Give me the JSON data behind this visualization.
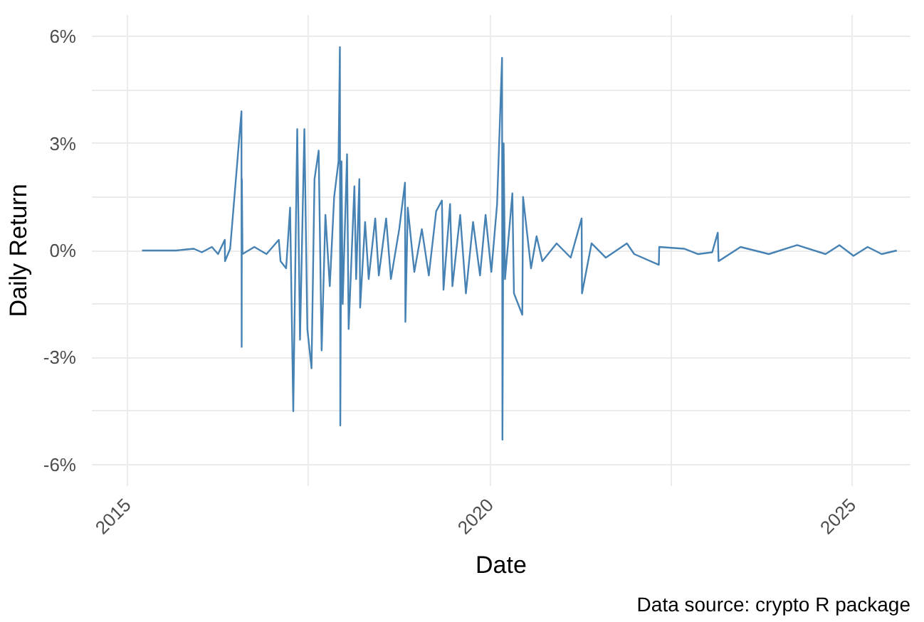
{
  "chart_data": {
    "type": "line",
    "xlabel": "Date",
    "ylabel": "Daily Return",
    "annotations": [
      "Data source: crypto R package"
    ],
    "xlim": [
      "2014-07-05",
      "2025-10-20"
    ],
    "ylim": [
      -6.6,
      6.6
    ],
    "xticks": [
      {
        "value": "2015-01-01",
        "label": "2015"
      },
      {
        "value": "2017-07-02",
        "label": null
      },
      {
        "value": "2020-01-01",
        "label": "2020"
      },
      {
        "value": "2022-07-02",
        "label": null
      },
      {
        "value": "2025-01-01",
        "label": "2025"
      }
    ],
    "yticks": [
      {
        "value": -6,
        "label": "-6%"
      },
      {
        "value": -4.5,
        "label": null
      },
      {
        "value": -3,
        "label": "-3%"
      },
      {
        "value": -1.5,
        "label": null
      },
      {
        "value": 0,
        "label": "0%"
      },
      {
        "value": 1.5,
        "label": null
      },
      {
        "value": 3,
        "label": "3%"
      },
      {
        "value": 4.5,
        "label": null
      },
      {
        "value": 6,
        "label": "6%"
      }
    ],
    "grid": true,
    "x": [
      "2015-03-15",
      "2015-09-01",
      "2015-12-01",
      "2016-01-10",
      "2016-03-01",
      "2016-04-01",
      "2016-05-05",
      "2016-05-06",
      "2016-06-01",
      "2016-07-28",
      "2016-07-29",
      "2016-07-30",
      "2016-08-02",
      "2016-10-01",
      "2016-12-01",
      "2017-02-01",
      "2017-02-10",
      "2017-03-10",
      "2017-03-30",
      "2017-04-15",
      "2017-05-05",
      "2017-05-19",
      "2017-06-10",
      "2017-06-25",
      "2017-07-16",
      "2017-07-31",
      "2017-08-21",
      "2017-09-05",
      "2017-09-24",
      "2017-10-16",
      "2017-11-07",
      "2017-11-29",
      "2017-12-06",
      "2017-12-08",
      "2017-12-14",
      "2017-12-20",
      "2018-01-11",
      "2018-01-19",
      "2018-02-17",
      "2018-02-26",
      "2018-03-14",
      "2018-03-18",
      "2018-04-12",
      "2018-04-30",
      "2018-06-02",
      "2018-06-20",
      "2018-07-27",
      "2018-08-20",
      "2018-10-01",
      "2018-10-30",
      "2018-11-01",
      "2018-11-13",
      "2018-12-16",
      "2019-01-23",
      "2019-02-27",
      "2019-04-05",
      "2019-05-04",
      "2019-05-12",
      "2019-06-14",
      "2019-06-26",
      "2019-08-04",
      "2019-09-02",
      "2019-10-08",
      "2019-11-12",
      "2019-12-10",
      "2020-01-08",
      "2020-02-06",
      "2020-03-02",
      "2020-03-04",
      "2020-03-10",
      "2020-03-17",
      "2020-04-23",
      "2020-05-01",
      "2020-06-12",
      "2020-06-16",
      "2020-07-26",
      "2020-08-23",
      "2020-09-21",
      "2020-12-02",
      "2021-02-11",
      "2021-04-07",
      "2021-04-09",
      "2021-05-27",
      "2021-08-07",
      "2021-11-21",
      "2021-12-28",
      "2022-05-01",
      "2022-05-03",
      "2022-09-05",
      "2022-11-15",
      "2023-01-25",
      "2023-02-22",
      "2023-02-26",
      "2023-06-17",
      "2023-11-06",
      "2024-03-28",
      "2024-08-18",
      "2024-10-27",
      "2025-01-06",
      "2025-03-18",
      "2025-05-28",
      "2025-08-12"
    ],
    "series": [
      {
        "color": "#4682b4",
        "values": [
          0,
          0.0,
          0.05,
          -0.05,
          0.1,
          -0.1,
          0.3,
          -0.3,
          0.05,
          3.9,
          -2.7,
          2.0,
          -0.1,
          0.1,
          -0.1,
          0.3,
          -0.3,
          -0.5,
          1.2,
          -4.5,
          3.4,
          -2.5,
          3.4,
          -2.2,
          -3.3,
          2.0,
          2.8,
          -2.8,
          1.0,
          -1.0,
          1.5,
          2.5,
          5.7,
          -4.9,
          2.5,
          -1.5,
          2.7,
          -2.2,
          1.8,
          -0.8,
          2.0,
          -1.6,
          0.8,
          -0.8,
          0.9,
          -0.7,
          0.9,
          -0.8,
          0.6,
          1.9,
          -2.0,
          1.2,
          -0.6,
          0.6,
          -0.7,
          1.1,
          1.4,
          -1.1,
          1.3,
          -1.0,
          1.0,
          -1.2,
          0.8,
          -0.7,
          1.0,
          -0.6,
          1.3,
          5.4,
          -5.3,
          3.0,
          -0.8,
          1.6,
          -1.2,
          -1.8,
          1.5,
          -0.5,
          0.4,
          -0.3,
          0.2,
          -0.2,
          0.9,
          -1.2,
          0.2,
          -0.2,
          0.2,
          -0.1,
          -0.4,
          0.1,
          0.05,
          -0.1,
          -0.05,
          0.5,
          -0.3,
          0.1,
          -0.1,
          0.15,
          -0.1,
          0.15,
          -0.15,
          0.1,
          -0.1,
          0
        ]
      }
    ]
  }
}
